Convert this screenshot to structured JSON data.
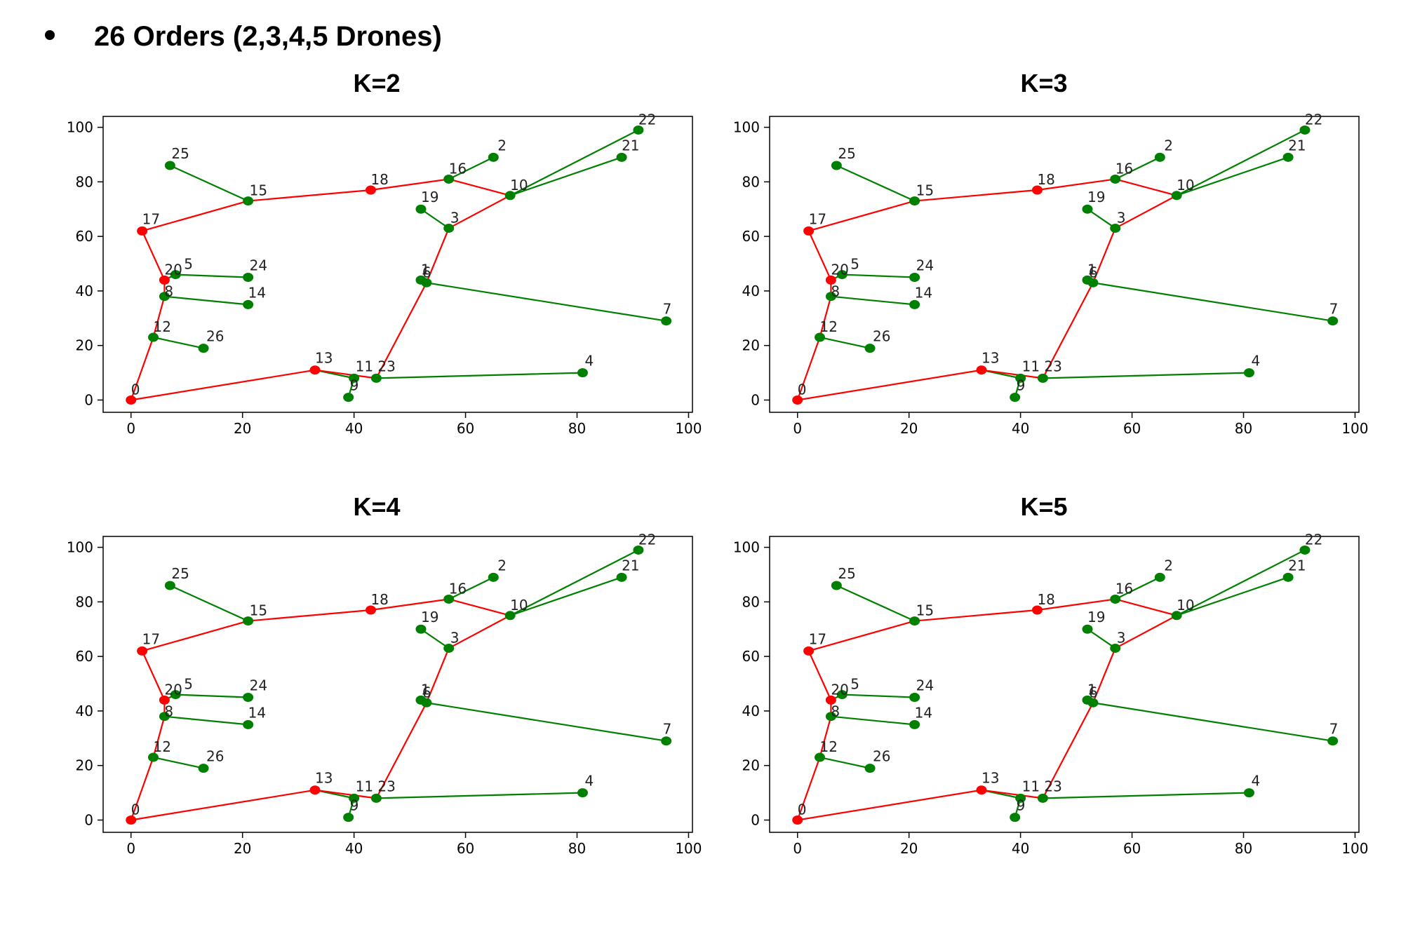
{
  "heading": "26 Orders (2,3,4,5 Drones)",
  "colors": {
    "truck": "#ff0000",
    "drone": "#008000"
  },
  "points": {
    "0": [
      0,
      0
    ],
    "1": [
      52,
      44
    ],
    "2": [
      65,
      89
    ],
    "3": [
      57,
      63
    ],
    "4": [
      81,
      10
    ],
    "5": [
      8,
      46
    ],
    "6": [
      53,
      43
    ],
    "7": [
      96,
      29
    ],
    "8": [
      6,
      38
    ],
    "9": [
      39,
      1
    ],
    "10": [
      68,
      75
    ],
    "11": [
      40,
      8
    ],
    "12": [
      4,
      23
    ],
    "13": [
      33,
      11
    ],
    "14": [
      21,
      35
    ],
    "15": [
      21,
      73
    ],
    "16": [
      57,
      81
    ],
    "17": [
      2,
      62
    ],
    "18": [
      43,
      77
    ],
    "19": [
      52,
      70
    ],
    "20": [
      6,
      44
    ],
    "21": [
      88,
      89
    ],
    "22": [
      91,
      99
    ],
    "23": [
      44,
      8
    ],
    "24": [
      21,
      45
    ],
    "25": [
      7,
      86
    ],
    "26": [
      13,
      19
    ]
  },
  "truck_route": [
    "0",
    "13",
    "23",
    "6",
    "3",
    "10",
    "16",
    "18",
    "15",
    "17",
    "20",
    "8",
    "12",
    "0"
  ],
  "drone_links": [
    [
      "25",
      "15"
    ],
    [
      "16",
      "2"
    ],
    [
      "10",
      "22"
    ],
    [
      "10",
      "21"
    ],
    [
      "19",
      "3"
    ],
    [
      "5",
      "24"
    ],
    [
      "8",
      "14"
    ],
    [
      "1",
      "6"
    ],
    [
      "6",
      "7"
    ],
    [
      "12",
      "26"
    ],
    [
      "11",
      "9"
    ],
    [
      "23",
      "4"
    ],
    [
      "20",
      "5"
    ],
    [
      "13",
      "11"
    ]
  ],
  "red_nodes": [
    "0",
    "13",
    "17",
    "18",
    "20"
  ],
  "chart_data": [
    {
      "type": "scatter",
      "title": "K=2",
      "xlim": [
        -5,
        100.7
      ],
      "ylim": [
        -4.5,
        104
      ],
      "xticks": [
        0,
        20,
        40,
        60,
        80,
        100
      ],
      "yticks": [
        0,
        20,
        40,
        60,
        80,
        100
      ]
    },
    {
      "type": "scatter",
      "title": "K=3",
      "xlim": [
        -5,
        100.7
      ],
      "ylim": [
        -4.5,
        104
      ],
      "xticks": [
        0,
        20,
        40,
        60,
        80,
        100
      ],
      "yticks": [
        0,
        20,
        40,
        60,
        80,
        100
      ]
    },
    {
      "type": "scatter",
      "title": "K=4",
      "xlim": [
        -5,
        100.7
      ],
      "ylim": [
        -4.5,
        104
      ],
      "xticks": [
        0,
        20,
        40,
        60,
        80,
        100
      ],
      "yticks": [
        0,
        20,
        40,
        60,
        80,
        100
      ]
    },
    {
      "type": "scatter",
      "title": "K=5",
      "xlim": [
        -5,
        100.7
      ],
      "ylim": [
        -4.5,
        104
      ],
      "xticks": [
        0,
        20,
        40,
        60,
        80,
        100
      ],
      "yticks": [
        0,
        20,
        40,
        60,
        80,
        100
      ]
    }
  ]
}
